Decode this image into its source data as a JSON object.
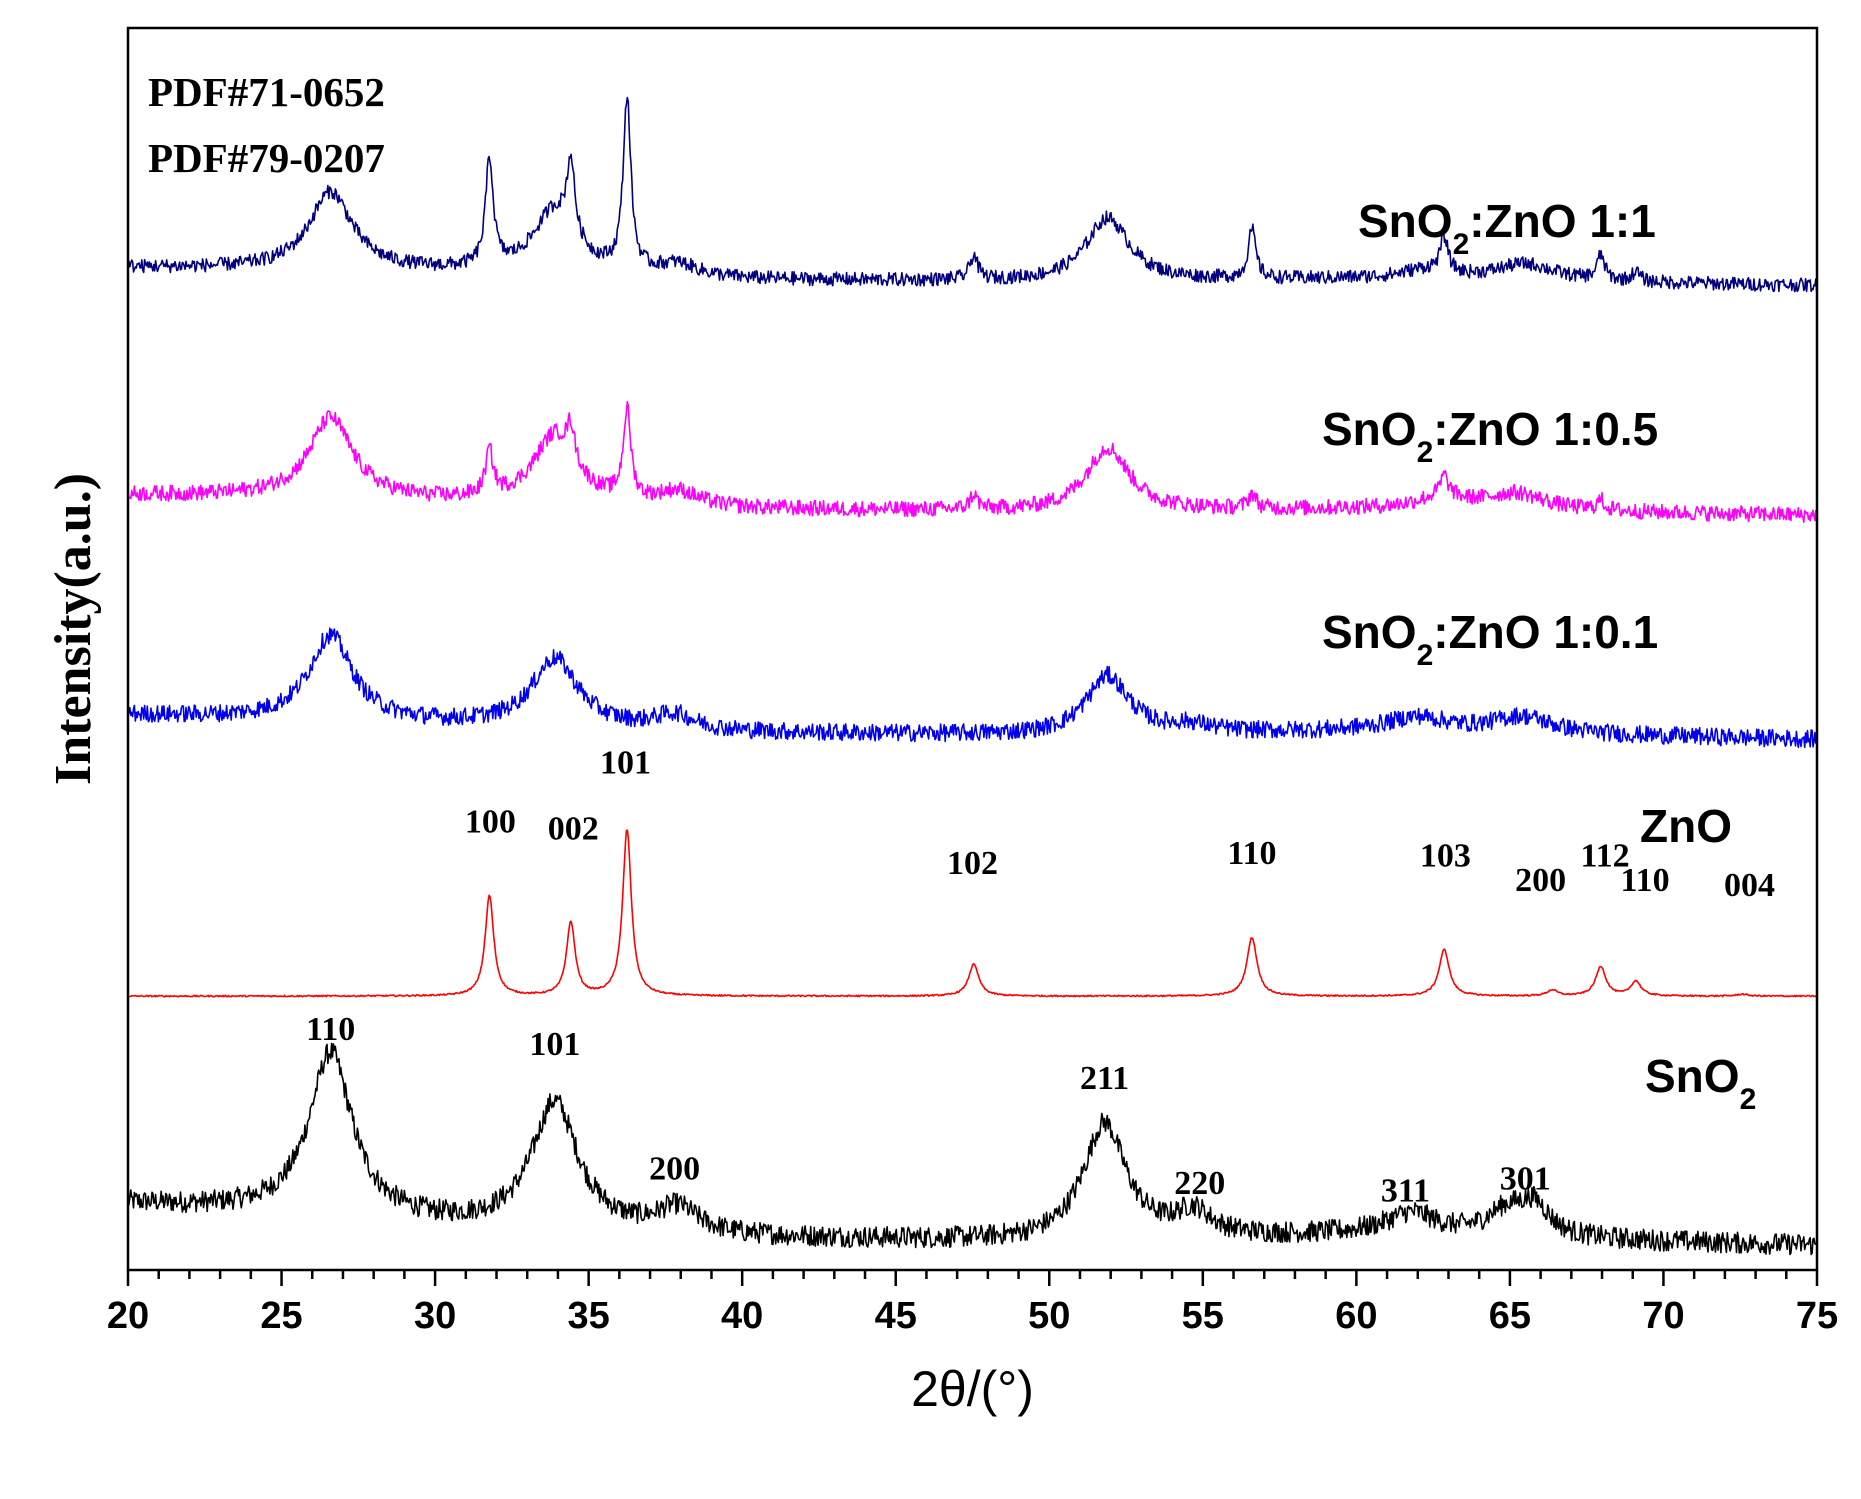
{
  "chart_data": {
    "type": "line",
    "xlabel": "2θ/(°)",
    "ylabel": "Intensity(a.u.)",
    "xlim": [
      20,
      75
    ],
    "x_ticks": [
      20,
      25,
      30,
      35,
      40,
      45,
      50,
      55,
      60,
      65,
      70,
      75
    ],
    "y_ticks": "none",
    "references": [
      "PDF#71-0652",
      "PDF#79-0207"
    ],
    "series": [
      {
        "name": "SnO",
        "name_subscript": "2",
        "name_suffix": "",
        "color": "#000000",
        "baseline_offset": 0,
        "noise": 0.022,
        "background": [
          [
            20,
            0.095
          ],
          [
            25,
            0.075
          ],
          [
            30,
            0.05
          ],
          [
            40,
            0.025
          ],
          [
            50,
            0.015
          ],
          [
            60,
            0.03
          ],
          [
            75,
            0.01
          ]
        ],
        "peaks": [
          {
            "x": 26.6,
            "h": 0.335,
            "w": 0.85
          },
          {
            "x": 33.9,
            "h": 0.26,
            "w": 0.9
          },
          {
            "x": 37.9,
            "h": 0.05,
            "w": 0.8
          },
          {
            "x": 51.8,
            "h": 0.24,
            "w": 0.85
          },
          {
            "x": 54.7,
            "h": 0.05,
            "w": 0.7
          },
          {
            "x": 61.8,
            "h": 0.045,
            "w": 1.0
          },
          {
            "x": 64.9,
            "h": 0.05,
            "w": 0.8
          },
          {
            "x": 65.8,
            "h": 0.06,
            "w": 0.6
          }
        ],
        "annotations": [
          {
            "text": "110",
            "x": 26.6,
            "y": 0.43
          },
          {
            "text": "101",
            "x": 33.9,
            "y": 0.4
          },
          {
            "text": "200",
            "x": 37.8,
            "y": 0.145
          },
          {
            "text": "211",
            "x": 51.8,
            "y": 0.33
          },
          {
            "text": "220",
            "x": 54.9,
            "y": 0.115
          },
          {
            "text": "311",
            "x": 61.6,
            "y": 0.1
          },
          {
            "text": "301",
            "x": 65.5,
            "y": 0.125
          }
        ]
      },
      {
        "name": "ZnO",
        "name_subscript": "",
        "name_suffix": "",
        "color": "#ff0000",
        "baseline_offset": 0.52,
        "noise": 0.0015,
        "background": [
          [
            20,
            0
          ],
          [
            75,
            0
          ]
        ],
        "peaks": [
          {
            "x": 31.77,
            "h": 0.205,
            "w": 0.17
          },
          {
            "x": 34.42,
            "h": 0.15,
            "w": 0.17
          },
          {
            "x": 36.25,
            "h": 0.34,
            "w": 0.17
          },
          {
            "x": 47.54,
            "h": 0.065,
            "w": 0.2
          },
          {
            "x": 56.6,
            "h": 0.12,
            "w": 0.2
          },
          {
            "x": 62.86,
            "h": 0.095,
            "w": 0.2
          },
          {
            "x": 66.38,
            "h": 0.012,
            "w": 0.2
          },
          {
            "x": 67.96,
            "h": 0.06,
            "w": 0.2
          },
          {
            "x": 69.1,
            "h": 0.03,
            "w": 0.2
          },
          {
            "x": 72.56,
            "h": 0.004,
            "w": 0.2
          }
        ],
        "annotations": [
          {
            "text": "100",
            "x": 31.8,
            "y": 0.855
          },
          {
            "text": "002",
            "x": 34.5,
            "y": 0.84
          },
          {
            "text": "101",
            "x": 36.2,
            "y": 0.975
          },
          {
            "text": "102",
            "x": 47.5,
            "y": 0.77
          },
          {
            "text": "110",
            "x": 56.6,
            "y": 0.79
          },
          {
            "text": "103",
            "x": 62.9,
            "y": 0.785
          },
          {
            "text": "200",
            "x": 66.0,
            "y": 0.735
          },
          {
            "text": "112",
            "x": 68.1,
            "y": 0.785
          },
          {
            "text": "110",
            "x": 69.4,
            "y": 0.735
          },
          {
            "text": "004",
            "x": 72.8,
            "y": 0.725
          }
        ]
      },
      {
        "name": "SnO",
        "name_subscript": "2",
        "name_suffix": ":ZnO 1:0.1",
        "color": "#0000ee",
        "baseline_offset": 1.04,
        "noise": 0.018,
        "background": [
          [
            20,
            0.055
          ],
          [
            25,
            0.045
          ],
          [
            30,
            0.035
          ],
          [
            40,
            0.018
          ],
          [
            50,
            0.012
          ],
          [
            60,
            0.02
          ],
          [
            75,
            0.005
          ]
        ],
        "peaks": [
          {
            "x": 26.6,
            "h": 0.175,
            "w": 0.85
          },
          {
            "x": 33.9,
            "h": 0.14,
            "w": 0.9
          },
          {
            "x": 37.8,
            "h": 0.03,
            "w": 0.8
          },
          {
            "x": 51.9,
            "h": 0.12,
            "w": 0.85
          },
          {
            "x": 54.6,
            "h": 0.015,
            "w": 0.8
          },
          {
            "x": 62.0,
            "h": 0.03,
            "w": 1.2
          },
          {
            "x": 65.4,
            "h": 0.035,
            "w": 1.2
          }
        ],
        "annotations": []
      },
      {
        "name": "SnO",
        "name_subscript": "2",
        "name_suffix": ":ZnO 1:0.5",
        "color": "#ff00ff",
        "baseline_offset": 1.5,
        "noise": 0.016,
        "background": [
          [
            20,
            0.045
          ],
          [
            25,
            0.04
          ],
          [
            30,
            0.03
          ],
          [
            40,
            0.015
          ],
          [
            50,
            0.01
          ],
          [
            60,
            0.015
          ],
          [
            75,
            0.003
          ]
        ],
        "peaks": [
          {
            "x": 26.6,
            "h": 0.165,
            "w": 0.85
          },
          {
            "x": 31.77,
            "h": 0.09,
            "w": 0.15
          },
          {
            "x": 33.9,
            "h": 0.14,
            "w": 0.85
          },
          {
            "x": 34.42,
            "h": 0.07,
            "w": 0.15
          },
          {
            "x": 36.25,
            "h": 0.18,
            "w": 0.15
          },
          {
            "x": 37.9,
            "h": 0.03,
            "w": 0.8
          },
          {
            "x": 47.54,
            "h": 0.03,
            "w": 0.15
          },
          {
            "x": 51.9,
            "h": 0.13,
            "w": 0.85
          },
          {
            "x": 56.6,
            "h": 0.03,
            "w": 0.15
          },
          {
            "x": 62.86,
            "h": 0.04,
            "w": 0.15
          },
          {
            "x": 62.8,
            "h": 0.025,
            "w": 1.0
          },
          {
            "x": 65.2,
            "h": 0.035,
            "w": 1.2
          },
          {
            "x": 67.96,
            "h": 0.02,
            "w": 0.15
          }
        ],
        "annotations": []
      },
      {
        "name": "SnO",
        "name_subscript": "2",
        "name_suffix": ":ZnO 1:1",
        "color": "#000080",
        "baseline_offset": 1.97,
        "noise": 0.014,
        "background": [
          [
            20,
            0.04
          ],
          [
            25,
            0.035
          ],
          [
            30,
            0.03
          ],
          [
            40,
            0.014
          ],
          [
            50,
            0.01
          ],
          [
            60,
            0.015
          ],
          [
            75,
            0.003
          ]
        ],
        "peaks": [
          {
            "x": 26.6,
            "h": 0.16,
            "w": 0.85
          },
          {
            "x": 31.77,
            "h": 0.22,
            "w": 0.15
          },
          {
            "x": 33.9,
            "h": 0.13,
            "w": 0.85
          },
          {
            "x": 34.42,
            "h": 0.15,
            "w": 0.15
          },
          {
            "x": 36.25,
            "h": 0.35,
            "w": 0.15
          },
          {
            "x": 37.9,
            "h": 0.025,
            "w": 0.8
          },
          {
            "x": 47.54,
            "h": 0.05,
            "w": 0.15
          },
          {
            "x": 51.9,
            "h": 0.13,
            "w": 0.85
          },
          {
            "x": 56.6,
            "h": 0.1,
            "w": 0.15
          },
          {
            "x": 62.86,
            "h": 0.07,
            "w": 0.15
          },
          {
            "x": 62.3,
            "h": 0.02,
            "w": 1.0
          },
          {
            "x": 65.5,
            "h": 0.035,
            "w": 1.2
          },
          {
            "x": 67.96,
            "h": 0.05,
            "w": 0.15
          },
          {
            "x": 69.1,
            "h": 0.02,
            "w": 0.15
          }
        ],
        "annotations": []
      }
    ]
  }
}
